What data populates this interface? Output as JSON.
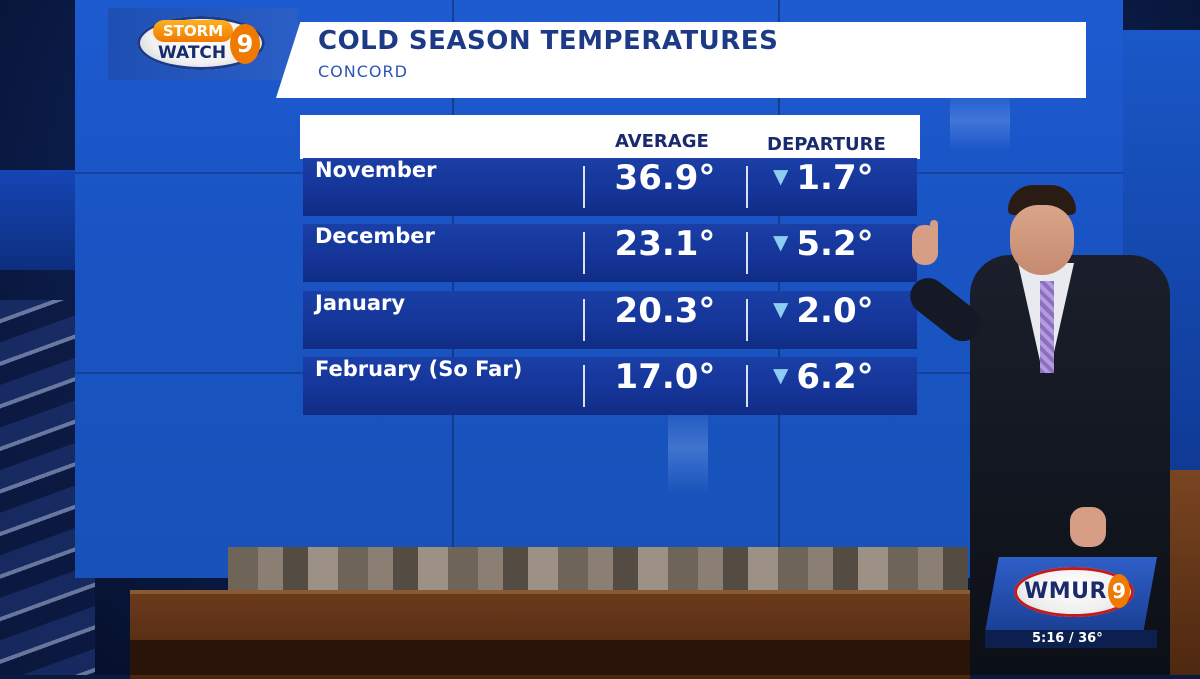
{
  "logo": {
    "line1": "STORM",
    "line2": "WATCH",
    "number": "9"
  },
  "graphic": {
    "title": "COLD SEASON TEMPERATURES",
    "subtitle": "CONCORD"
  },
  "table": {
    "headers": {
      "average": "AVERAGE",
      "departure": "DEPARTURE"
    },
    "departure_direction": "below normal (down arrow)",
    "rows": [
      {
        "month": "November",
        "average": "36.9°",
        "departure": "1.7°"
      },
      {
        "month": "December",
        "average": "23.1°",
        "departure": "5.2°"
      },
      {
        "month": "January",
        "average": "20.3°",
        "departure": "2.0°"
      },
      {
        "month": "February (So Far)",
        "average": "17.0°",
        "departure": "6.2°"
      }
    ]
  },
  "bug": {
    "station": "WMUR",
    "number": "9",
    "time_temp": "5:16 / 36°"
  },
  "colors": {
    "wall_blue": "#1d5bd1",
    "row_blue": "#153599",
    "accent_orange": "#f07a00",
    "arrow_cyan": "#8ecdf2"
  },
  "icons": {
    "departure_arrow": "down-triangle-icon"
  }
}
